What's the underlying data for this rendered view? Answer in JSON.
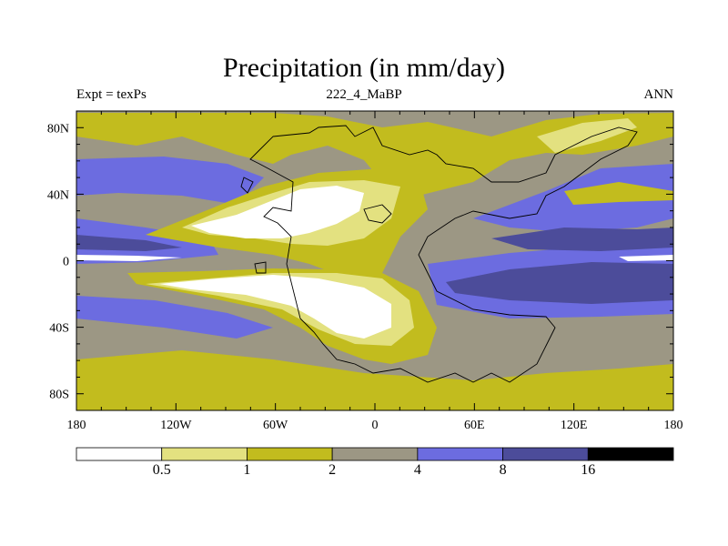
{
  "title": "Precipitation (in mm/day)",
  "subtitle_left": "Expt = texPs",
  "subtitle_center": "222_4_MaBP",
  "subtitle_right": "ANN",
  "map": {
    "projection": "cylindrical equidistant",
    "lon_range": [
      -180,
      180
    ],
    "lat_range": [
      -90,
      90
    ],
    "x_tick_labels": [
      "180",
      "120W",
      "60W",
      "0",
      "60E",
      "120E",
      "180"
    ],
    "x_tick_values": [
      -180,
      -120,
      -60,
      0,
      60,
      120,
      180
    ],
    "y_tick_labels": [
      "80N",
      "40N",
      "0",
      "40S",
      "80S"
    ],
    "y_tick_values": [
      80,
      40,
      0,
      -40,
      -80
    ],
    "background_level": "2-4"
  },
  "colorbar": {
    "colors": [
      "#ffffff",
      "#e3e180",
      "#c2bc1e",
      "#9c9784",
      "#6c6ce0",
      "#4c4c9a",
      "#000000"
    ],
    "labels": [
      "0.5",
      "1",
      "2",
      "4",
      "8",
      "16"
    ]
  }
}
